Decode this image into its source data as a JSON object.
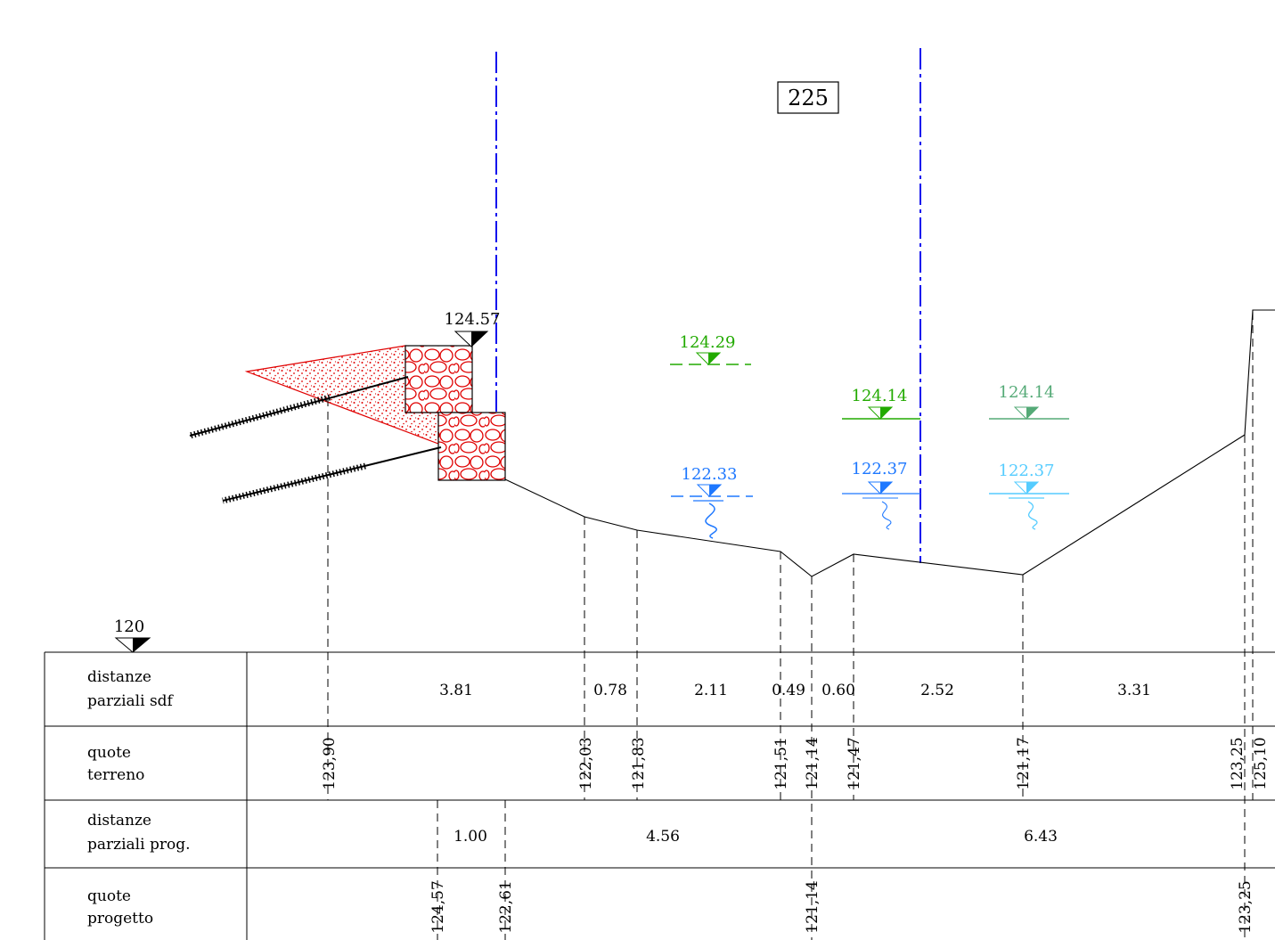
{
  "section_number": "225",
  "elevations": {
    "wall_top": "124.57",
    "green_dashed": "124.29",
    "green_solid": "124.14",
    "teal_solid": "124.14",
    "blue_dashed": "122.33",
    "blue_solid": "122.37",
    "lightblue_solid": "122.37",
    "datum": "120"
  },
  "colors": {
    "green": "#22aa00",
    "teal": "#55aa77",
    "blue": "#1e78ff",
    "lightblue": "#55ccff",
    "axis": "#1010ee",
    "wall": "#e00000"
  },
  "table": {
    "row_labels": [
      [
        "distanze",
        "parziali sdf"
      ],
      [
        "quote",
        "terreno"
      ],
      [
        "distanze",
        "parziali prog."
      ],
      [
        "quote",
        "progetto"
      ]
    ],
    "distanze_sdf": [
      "3.81",
      "0.78",
      "2.11",
      "0.49",
      "0.60",
      "2.52",
      "3.31"
    ],
    "quote_terreno": [
      "123,90",
      "122,03",
      "121,83",
      "121,51",
      "121,14",
      "121,47",
      "121,17",
      "123,25",
      "125,10"
    ],
    "distanze_prog": [
      "1.00",
      "4.56",
      "6.43"
    ],
    "quote_progetto": [
      "124,57",
      "122,61",
      "121,14",
      "123,25"
    ]
  }
}
